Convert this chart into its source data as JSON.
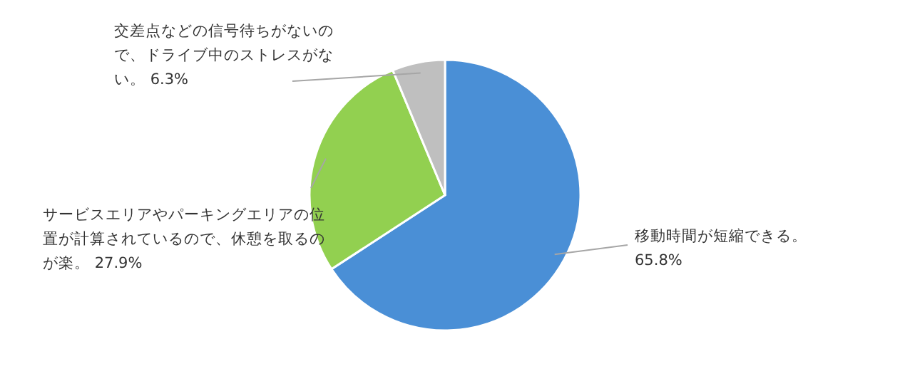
{
  "chart_data": {
    "type": "pie",
    "categories": [
      "移動時間が短縮できる。",
      "サービスエリアやパーキングエリアの位置が計算されているので、休憩を取るのが楽。",
      "交差点などの信号待ちがないので、ドライブ中のストレスがない。"
    ],
    "values": [
      65.8,
      27.9,
      6.3
    ],
    "colors": [
      "#4a8fd6",
      "#92d050",
      "#bfbfbf"
    ],
    "value_labels": [
      "65.8%",
      "27.9%",
      "6.3%"
    ]
  }
}
